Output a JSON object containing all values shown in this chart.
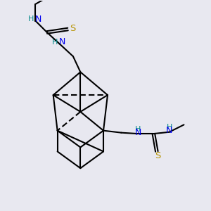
{
  "bg_color": "#e8e8f0",
  "bond_color": "#000000",
  "N_color": "#0000ee",
  "S_color": "#b8960a",
  "H_color": "#008888",
  "line_width": 1.5,
  "figsize": [
    3.0,
    3.0
  ],
  "dpi": 100,
  "xlim": [
    0,
    10
  ],
  "ylim": [
    0,
    10
  ]
}
